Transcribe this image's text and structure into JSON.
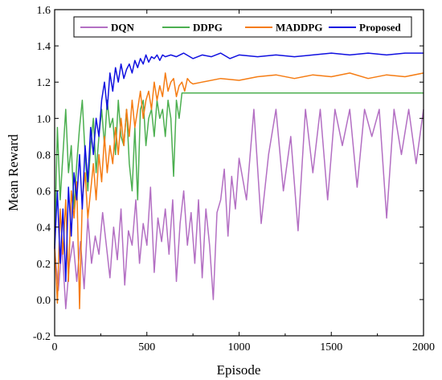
{
  "chart_data": {
    "type": "line",
    "title": "",
    "xlabel": "Episode",
    "ylabel": "Mean Reward",
    "xlim": [
      0,
      2000
    ],
    "ylim": [
      -0.2,
      1.6
    ],
    "x_ticks": [
      0,
      500,
      1000,
      1500,
      2000
    ],
    "y_ticks": [
      -0.2,
      0.0,
      0.2,
      0.4,
      0.6,
      0.8,
      1.0,
      1.2,
      1.4,
      1.6
    ],
    "x_tick_labels": [
      "0",
      "500",
      "1000",
      "1500",
      "2000"
    ],
    "y_tick_labels": [
      "-0.2",
      "0.0",
      "0.2",
      "0.4",
      "0.6",
      "0.8",
      "1.0",
      "1.2",
      "1.4",
      "1.6"
    ],
    "grid": false,
    "legend_position": "top",
    "series": [
      {
        "name": "DQN",
        "color": "#b36fc3",
        "x": [
          0,
          20,
          40,
          60,
          80,
          100,
          120,
          140,
          160,
          180,
          200,
          220,
          240,
          260,
          280,
          300,
          320,
          340,
          360,
          380,
          400,
          420,
          440,
          460,
          480,
          500,
          520,
          540,
          560,
          580,
          600,
          620,
          640,
          660,
          680,
          700,
          720,
          740,
          760,
          780,
          800,
          820,
          840,
          860,
          880,
          900,
          920,
          940,
          960,
          980,
          1000,
          1040,
          1080,
          1120,
          1160,
          1200,
          1240,
          1280,
          1320,
          1360,
          1400,
          1440,
          1480,
          1520,
          1560,
          1600,
          1640,
          1680,
          1720,
          1760,
          1800,
          1840,
          1880,
          1920,
          1960,
          2000
        ],
        "y": [
          0.28,
          0.05,
          0.3,
          -0.05,
          0.2,
          0.32,
          0.1,
          0.32,
          0.06,
          0.45,
          0.2,
          0.35,
          0.25,
          0.48,
          0.3,
          0.12,
          0.4,
          0.22,
          0.5,
          0.08,
          0.38,
          0.3,
          0.55,
          0.2,
          0.42,
          0.3,
          0.62,
          0.15,
          0.45,
          0.32,
          0.5,
          0.25,
          0.55,
          0.1,
          0.42,
          0.6,
          0.3,
          0.48,
          0.2,
          0.55,
          0.12,
          0.5,
          0.3,
          0.0,
          0.48,
          0.55,
          0.72,
          0.35,
          0.68,
          0.5,
          0.78,
          0.55,
          1.05,
          0.42,
          0.8,
          1.05,
          0.6,
          0.9,
          0.38,
          1.05,
          0.7,
          1.05,
          0.55,
          1.05,
          0.85,
          1.05,
          0.62,
          1.05,
          0.9,
          1.05,
          0.45,
          1.05,
          0.8,
          1.05,
          0.75,
          1.05
        ]
      },
      {
        "name": "DDPG",
        "color": "#4caf50",
        "x": [
          0,
          15,
          30,
          45,
          60,
          75,
          90,
          105,
          120,
          135,
          150,
          165,
          180,
          195,
          210,
          225,
          240,
          255,
          270,
          285,
          300,
          315,
          330,
          345,
          360,
          375,
          390,
          405,
          420,
          435,
          450,
          465,
          480,
          495,
          510,
          525,
          540,
          555,
          570,
          585,
          600,
          615,
          630,
          645,
          660,
          675,
          690,
          705,
          720,
          735,
          750,
          800,
          900,
          1000,
          1200,
          1400,
          1600,
          1800,
          2000
        ],
        "y": [
          0.3,
          0.95,
          0.55,
          0.8,
          1.05,
          0.7,
          0.85,
          0.5,
          0.75,
          0.95,
          1.1,
          0.8,
          0.6,
          0.85,
          1.0,
          0.7,
          0.9,
          1.05,
          0.85,
          1.1,
          0.95,
          1.0,
          0.8,
          1.1,
          0.9,
          0.85,
          1.05,
          0.75,
          0.6,
          0.95,
          0.55,
          1.05,
          1.1,
          0.85,
          1.0,
          1.05,
          0.9,
          1.1,
          1.0,
          1.05,
          0.9,
          1.1,
          1.0,
          0.68,
          1.1,
          1.0,
          1.14,
          1.14,
          1.14,
          1.14,
          1.14,
          1.14,
          1.14,
          1.14,
          1.14,
          1.14,
          1.14,
          1.14,
          1.14
        ]
      },
      {
        "name": "MADDPG",
        "color": "#f57c13",
        "x": [
          0,
          15,
          30,
          45,
          60,
          75,
          90,
          105,
          120,
          135,
          150,
          165,
          180,
          195,
          210,
          225,
          240,
          255,
          270,
          285,
          300,
          315,
          330,
          345,
          360,
          375,
          390,
          405,
          420,
          435,
          450,
          465,
          480,
          495,
          510,
          525,
          540,
          555,
          570,
          585,
          600,
          615,
          630,
          645,
          660,
          675,
          690,
          705,
          720,
          735,
          750,
          800,
          900,
          1000,
          1100,
          1200,
          1300,
          1400,
          1500,
          1600,
          1700,
          1800,
          1900,
          2000
        ],
        "y": [
          0.3,
          -0.02,
          0.5,
          0.25,
          0.55,
          0.1,
          0.6,
          0.45,
          0.65,
          -0.05,
          0.55,
          0.7,
          0.45,
          0.6,
          0.75,
          0.55,
          0.8,
          0.65,
          0.9,
          0.7,
          0.85,
          0.75,
          0.95,
          0.8,
          1.0,
          0.85,
          1.05,
          0.9,
          1.1,
          0.95,
          1.05,
          1.15,
          1.0,
          1.1,
          1.15,
          1.05,
          1.2,
          1.1,
          1.18,
          1.12,
          1.25,
          1.15,
          1.2,
          1.22,
          1.12,
          1.18,
          1.2,
          1.15,
          1.22,
          1.2,
          1.19,
          1.2,
          1.22,
          1.21,
          1.23,
          1.24,
          1.22,
          1.24,
          1.23,
          1.25,
          1.22,
          1.24,
          1.23,
          1.25
        ]
      },
      {
        "name": "Proposed",
        "color": "#1010e0",
        "x": [
          0,
          15,
          30,
          45,
          60,
          75,
          90,
          105,
          120,
          135,
          150,
          165,
          180,
          195,
          210,
          225,
          240,
          255,
          270,
          285,
          300,
          315,
          330,
          345,
          360,
          375,
          390,
          405,
          420,
          435,
          450,
          465,
          480,
          495,
          510,
          525,
          540,
          555,
          570,
          585,
          600,
          630,
          660,
          700,
          750,
          800,
          850,
          900,
          950,
          1000,
          1100,
          1200,
          1300,
          1400,
          1500,
          1600,
          1700,
          1800,
          1900,
          2000
        ],
        "y": [
          0.28,
          0.6,
          0.2,
          0.5,
          0.1,
          0.62,
          0.35,
          0.7,
          0.55,
          0.8,
          0.5,
          0.85,
          0.65,
          0.95,
          0.8,
          1.0,
          0.9,
          1.1,
          1.2,
          1.05,
          1.25,
          1.15,
          1.28,
          1.2,
          1.3,
          1.22,
          1.27,
          1.3,
          1.25,
          1.32,
          1.28,
          1.33,
          1.3,
          1.35,
          1.31,
          1.34,
          1.33,
          1.35,
          1.32,
          1.35,
          1.34,
          1.35,
          1.34,
          1.36,
          1.33,
          1.35,
          1.34,
          1.36,
          1.33,
          1.35,
          1.34,
          1.35,
          1.34,
          1.35,
          1.36,
          1.35,
          1.36,
          1.35,
          1.36,
          1.36
        ]
      }
    ]
  }
}
